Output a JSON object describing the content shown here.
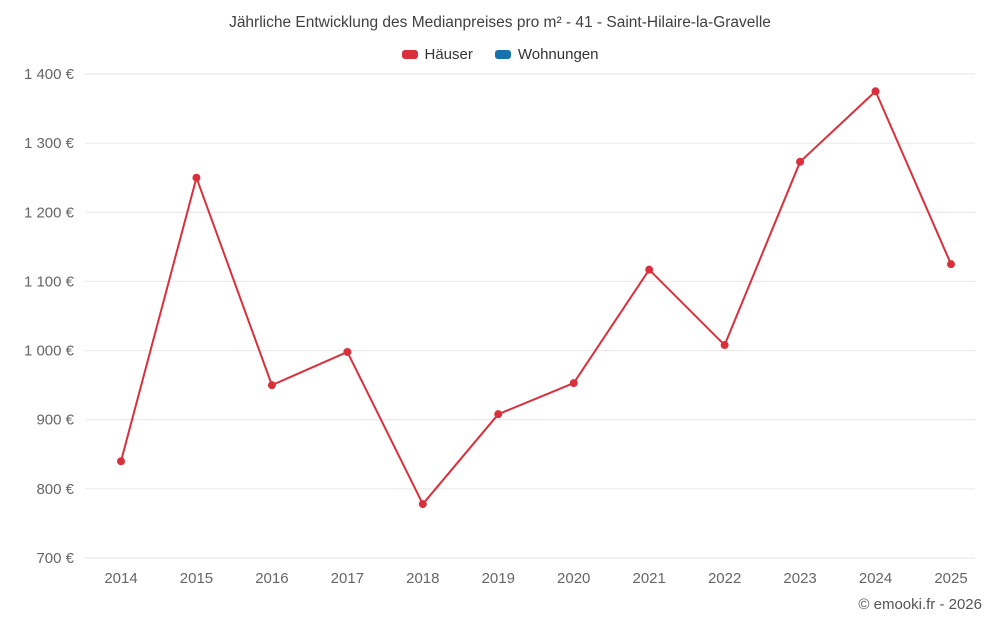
{
  "chart_data": {
    "type": "line",
    "title": "Jährliche Entwicklung des Medianpreises pro m² - 41 - Saint-Hilaire-la-Gravelle",
    "categories": [
      "2014",
      "2015",
      "2016",
      "2017",
      "2018",
      "2019",
      "2020",
      "2021",
      "2022",
      "2023",
      "2024",
      "2025"
    ],
    "series": [
      {
        "name": "Häuser",
        "color": "#d9303c",
        "values": [
          840,
          1250,
          950,
          998,
          778,
          908,
          953,
          1117,
          1008,
          1273,
          1375,
          1125
        ]
      },
      {
        "name": "Wohnungen",
        "color": "#1673ac",
        "values": []
      }
    ],
    "ylim": [
      700,
      1400
    ],
    "ytick_values": [
      700,
      800,
      900,
      1000,
      1100,
      1200,
      1300,
      1400
    ],
    "ytick_labels": [
      "700 €",
      "800 €",
      "900 €",
      "1 000 €",
      "1 100 €",
      "1 200 €",
      "1 300 €",
      "1 400 €"
    ],
    "ylabel": "",
    "xlabel": "",
    "grid": true,
    "legend_position": "top",
    "colors": {
      "gridline": "#e6e6e6",
      "axis_text": "#666666",
      "title_text": "#404040"
    }
  },
  "footer": {
    "credit": "© emooki.fr - 2026"
  }
}
